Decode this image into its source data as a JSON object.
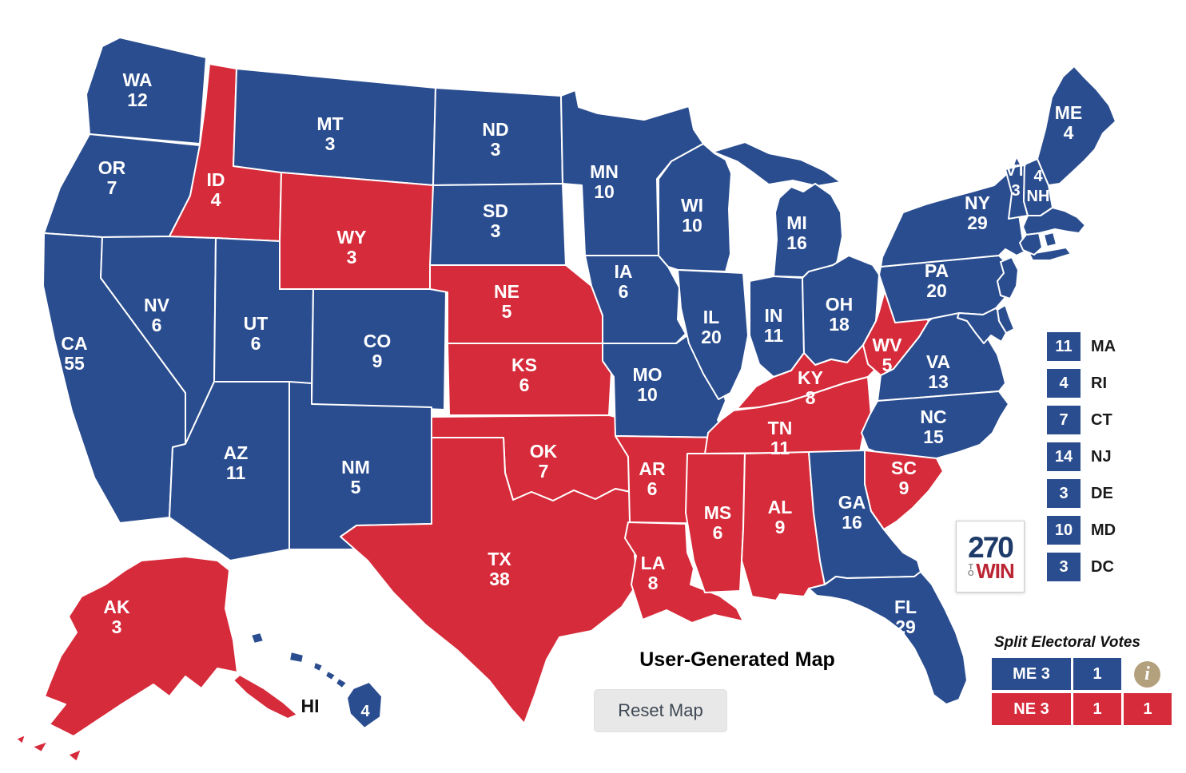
{
  "title": "User-Generated Map",
  "reset_button": "Reset Map",
  "hawaii_label": "HI",
  "logo": {
    "line1": "270",
    "to": "TO",
    "win": "WIN"
  },
  "colors": {
    "democrat": "#2a4d8f",
    "republican": "#d62b3a",
    "logo_navy": "#1e3a68",
    "logo_red": "#bb2433",
    "info_icon": "#b3a07c"
  },
  "states": [
    {
      "abbr": "WA",
      "votes": 12,
      "party": "democrat"
    },
    {
      "abbr": "OR",
      "votes": 7,
      "party": "democrat"
    },
    {
      "abbr": "CA",
      "votes": 55,
      "party": "democrat"
    },
    {
      "abbr": "NV",
      "votes": 6,
      "party": "democrat"
    },
    {
      "abbr": "ID",
      "votes": 4,
      "party": "republican"
    },
    {
      "abbr": "UT",
      "votes": 6,
      "party": "democrat"
    },
    {
      "abbr": "AZ",
      "votes": 11,
      "party": "democrat"
    },
    {
      "abbr": "MT",
      "votes": 3,
      "party": "democrat"
    },
    {
      "abbr": "WY",
      "votes": 3,
      "party": "republican"
    },
    {
      "abbr": "CO",
      "votes": 9,
      "party": "democrat"
    },
    {
      "abbr": "NM",
      "votes": 5,
      "party": "democrat"
    },
    {
      "abbr": "ND",
      "votes": 3,
      "party": "democrat"
    },
    {
      "abbr": "SD",
      "votes": 3,
      "party": "democrat"
    },
    {
      "abbr": "NE",
      "votes": 5,
      "party": "republican"
    },
    {
      "abbr": "KS",
      "votes": 6,
      "party": "republican"
    },
    {
      "abbr": "OK",
      "votes": 7,
      "party": "republican"
    },
    {
      "abbr": "TX",
      "votes": 38,
      "party": "republican"
    },
    {
      "abbr": "MN",
      "votes": 10,
      "party": "democrat"
    },
    {
      "abbr": "IA",
      "votes": 6,
      "party": "democrat"
    },
    {
      "abbr": "MO",
      "votes": 10,
      "party": "democrat"
    },
    {
      "abbr": "AR",
      "votes": 6,
      "party": "republican"
    },
    {
      "abbr": "LA",
      "votes": 8,
      "party": "republican"
    },
    {
      "abbr": "WI",
      "votes": 10,
      "party": "democrat"
    },
    {
      "abbr": "MI",
      "votes": 16,
      "party": "democrat"
    },
    {
      "abbr": "IL",
      "votes": 20,
      "party": "democrat"
    },
    {
      "abbr": "IN",
      "votes": 11,
      "party": "democrat"
    },
    {
      "abbr": "OH",
      "votes": 18,
      "party": "democrat"
    },
    {
      "abbr": "KY",
      "votes": 8,
      "party": "republican"
    },
    {
      "abbr": "TN",
      "votes": 11,
      "party": "republican"
    },
    {
      "abbr": "MS",
      "votes": 6,
      "party": "republican"
    },
    {
      "abbr": "AL",
      "votes": 9,
      "party": "republican"
    },
    {
      "abbr": "GA",
      "votes": 16,
      "party": "democrat"
    },
    {
      "abbr": "WV",
      "votes": 5,
      "party": "republican"
    },
    {
      "abbr": "VA",
      "votes": 13,
      "party": "democrat"
    },
    {
      "abbr": "NC",
      "votes": 15,
      "party": "democrat"
    },
    {
      "abbr": "SC",
      "votes": 9,
      "party": "republican"
    },
    {
      "abbr": "FL",
      "votes": 29,
      "party": "democrat"
    },
    {
      "abbr": "PA",
      "votes": 20,
      "party": "democrat"
    },
    {
      "abbr": "NY",
      "votes": 29,
      "party": "democrat"
    },
    {
      "abbr": "VT",
      "votes": 3,
      "party": "democrat"
    },
    {
      "abbr": "NH",
      "votes": 4,
      "party": "democrat"
    },
    {
      "abbr": "ME",
      "votes": 4,
      "party": "democrat"
    },
    {
      "abbr": "MA",
      "votes": 11,
      "party": "democrat"
    },
    {
      "abbr": "RI",
      "votes": 4,
      "party": "democrat"
    },
    {
      "abbr": "CT",
      "votes": 7,
      "party": "democrat"
    },
    {
      "abbr": "NJ",
      "votes": 14,
      "party": "democrat"
    },
    {
      "abbr": "DE",
      "votes": 3,
      "party": "democrat"
    },
    {
      "abbr": "MD",
      "votes": 10,
      "party": "democrat"
    },
    {
      "abbr": "DC",
      "votes": 3,
      "party": "democrat"
    },
    {
      "abbr": "AK",
      "votes": 3,
      "party": "republican"
    },
    {
      "abbr": "HI",
      "votes": 4,
      "party": "democrat"
    }
  ],
  "small_state_legend": [
    "MA",
    "RI",
    "CT",
    "NJ",
    "DE",
    "MD",
    "DC"
  ],
  "split_legend": {
    "title": "Split Electoral Votes",
    "rows": [
      {
        "party": "democrat",
        "boxes": [
          "ME 3",
          "1"
        ],
        "info_icon": true
      },
      {
        "party": "republican",
        "boxes": [
          "NE 3",
          "1",
          "1"
        ],
        "info_icon": false
      }
    ]
  }
}
